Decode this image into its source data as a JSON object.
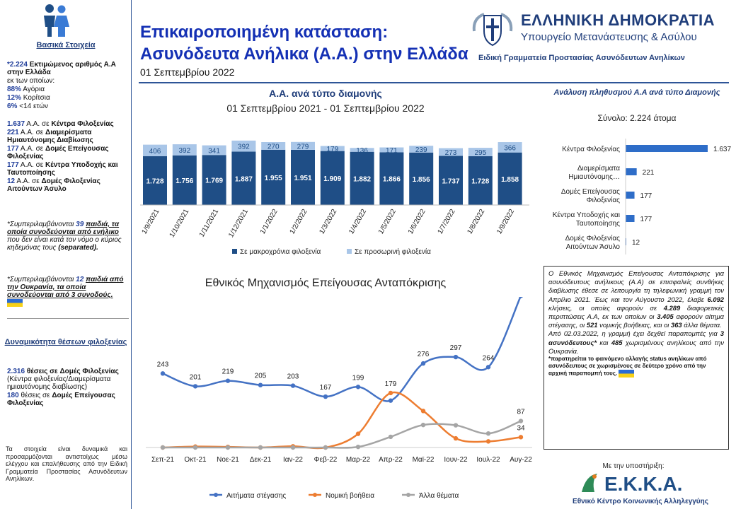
{
  "header": {
    "title_line1": "Επικαιροποιημένη κατάσταση:",
    "title_line2": "Ασυνόδευτα Ανήλικα (Α.Α.) στην Ελλάδα",
    "date": "01 Σεπτεμβρίου 2022",
    "gov_name": "ΕΛΛΗΝΙΚΗ ΔΗΜΟΚΡΑΤΙΑ",
    "gov_ministry": "Υπουργείο Μετανάστευσης & Ασύλου",
    "gov_secretariat": "Ειδική Γραμματεία Προστασίας Ασυνόδευτων Ανηλίκων"
  },
  "sidebar": {
    "basic_title": "Βασικά Στοιχεία",
    "estimate_value": "*2.224",
    "estimate_text": "Εκτιμώμενος αριθμός Α.Α στην Ελλάδα",
    "of_which": "εκ των οποίων:",
    "boys_pct": "88%",
    "boys_label": "Αγόρια",
    "girls_pct": "12%",
    "girls_label": "Κορίτσια",
    "under14_pct": "6%",
    "under14_label": "<14 ετών",
    "acc1_value": "1.637",
    "acc1_mid": "Α.Α. σε",
    "acc1_label": "Κέντρα Φιλοξενίας",
    "acc2_value": "221",
    "acc2_mid": "Α.Α. σε",
    "acc2_label": "Διαμερίσματα Ημιαυτόνομης Διαβίωσης",
    "acc3_value": "177",
    "acc3_mid": "Α.Α. σε",
    "acc3_label": "Δομές Επείγουσας Φιλοξενίας",
    "acc4_value": "177",
    "acc4_mid": "Α.Α. σε",
    "acc4_label": "Κέντρα Υποδοχής και Ταυτοποίησης",
    "acc5_value": "12",
    "acc5_mid": "Α.Α. σε",
    "acc5_label": "Δομές Φιλοξενίας Αιτούντων Άσυλο",
    "note1_a": "*Συμπεριλαμβάνονται",
    "note1_num": "39",
    "note1_b": "παιδιά, τα οποία συνοδεύονται από ενήλικο",
    "note1_c": "που δεν είναι κατά τον νόμο ο κύριος κηδεμόνας τους",
    "note1_d": "(separated).",
    "note2_a": "*Συμπεριλαμβάνονται",
    "note2_num": "12",
    "note2_b": "παιδιά από την Ουκρανία, τα οποία συνοδεύονται από 3 συνοδούς.",
    "capacity_title": "Δυναμικότητα θέσεων φιλοξενίας",
    "cap1_value": "2.316",
    "cap1_mid": "θέσεις σε",
    "cap1_label": "Δομές Φιλοξενίας",
    "cap1_note": "(Κέντρα φιλοξενίας/Διαμερίσματα ημιαυτόνομης διαβίωσης)",
    "cap2_value": "180",
    "cap2_mid": "θέσεις σε",
    "cap2_label": "Δομές Επείγουσας Φιλοξενίας",
    "footnote": "Τα στοιχεία είναι δυναμικά και προσαρμόζονται αντιστοίχως μέσω ελέγχου και επαλήθευσης από την Ειδική Γραμματεία Προστασίας Ασυνόδευτων Ανηλίκων."
  },
  "accommodation_chart": {
    "title": "Α.Α. ανά τύπο διαμονής",
    "subtitle": "01 Σεπτεμβρίου 2021 - 01 Σεπτεμβρίου 2022"
  },
  "emergency_chart": {
    "title": "Εθνικός Μηχανισμός Επείγουσας Ανταπόκρισης"
  },
  "population_chart": {
    "title": "Ανάλυση πληθυσμού Α.Α ανά τύπο Διαμονής",
    "total": "Σύνολο: 2.224 άτομα"
  },
  "chart_data": [
    {
      "type": "bar",
      "stacked": true,
      "title": "Α.Α. ανά τύπο διαμονής",
      "subtitle": "01 Σεπτεμβρίου 2021 - 01 Σεπτεμβρίου 2022",
      "categories": [
        "1/9/2021",
        "1/10/2021",
        "1/11/2021",
        "1/12/2021",
        "1/1/2022",
        "1/2/2022",
        "1/3/2022",
        "1/4/2022",
        "1/5/2022",
        "1/6/2022",
        "1/7/2022",
        "1/8/2022",
        "1/9/2022"
      ],
      "series": [
        {
          "name": "Σε μακροχρόνια φιλοξενία",
          "values": [
            1728,
            1756,
            1769,
            1887,
            1955,
            1951,
            1909,
            1882,
            1866,
            1856,
            1737,
            1728,
            1858
          ],
          "labels": [
            "1.728",
            "1.756",
            "1.769",
            "1.887",
            "1.955",
            "1.951",
            "1.909",
            "1.882",
            "1.866",
            "1.856",
            "1.737",
            "1.728",
            "1.858"
          ],
          "color": "#1f4e86"
        },
        {
          "name": "Σε προσωρινή φιλοξενία",
          "values": [
            406,
            392,
            341,
            392,
            270,
            279,
            179,
            136,
            171,
            239,
            273,
            295,
            366
          ],
          "labels": [
            "406",
            "392",
            "341",
            "392",
            "270",
            "279",
            "179",
            "136",
            "171",
            "239",
            "273",
            "295",
            "366"
          ],
          "color": "#a9c6e8"
        }
      ],
      "legend": "bottom"
    },
    {
      "type": "bar",
      "orientation": "horizontal",
      "title": "Ανάλυση πληθυσμού Α.Α ανά τύπο Διαμονής",
      "subtitle": "Σύνολο: 2.224 άτομα",
      "categories": [
        "Κέντρα Φιλοξενίας",
        "Διαμερίσματα Ημιαυτόνομης…",
        "Δομές Επείγουσας Φιλοξενίας",
        "Κέντρα Υποδοχής και Ταυτοποίησης",
        "Δομές Φιλοξενίας Αιτούντων Άσυλο"
      ],
      "values": [
        1637,
        221,
        177,
        177,
        12
      ],
      "labels": [
        "1.637",
        "221",
        "177",
        "177",
        "12"
      ],
      "color": "#2e6dc8"
    },
    {
      "type": "line",
      "title": "Εθνικός Μηχανισμός Επείγουσας Ανταπόκρισης",
      "categories": [
        "Σεπ-21",
        "Οκτ-21",
        "Νοε-21",
        "Δεκ-21",
        "Ιαν-22",
        "Φεβ-22",
        "Μαρ-22",
        "Απρ-22",
        "Μαϊ-22",
        "Ιουν-22",
        "Ιουλ-22",
        "Αυγ-22"
      ],
      "ylim": [
        0,
        520
      ],
      "series": [
        {
          "name": "Αιτήματα στέγασης",
          "values": [
            243,
            201,
            219,
            205,
            203,
            167,
            199,
            154,
            276,
            297,
            264,
            498
          ],
          "labels": [
            "243",
            "201",
            "219",
            "205",
            "203",
            "167",
            "199",
            "",
            "276",
            "297",
            "264",
            "498"
          ],
          "color": "#4472c4"
        },
        {
          "name": "Νομική βοήθεια",
          "values": [
            0,
            3,
            2,
            0,
            4,
            0,
            45,
            179,
            120,
            30,
            20,
            34
          ],
          "labels": [
            "",
            "",
            "",
            "",
            "",
            "",
            "",
            "179",
            "",
            "",
            "",
            "34"
          ],
          "color": "#ed7d31"
        },
        {
          "name": "Άλλα θέματα",
          "values": [
            0,
            0,
            0,
            0,
            0,
            0,
            2,
            35,
            74,
            73,
            46,
            87
          ],
          "labels": [
            "",
            "",
            "",
            "",
            "",
            "",
            "",
            "",
            "",
            "",
            "",
            "87"
          ],
          "color": "#a5a5a5"
        }
      ],
      "legend": "bottom"
    }
  ],
  "info_box": {
    "p1_a": "Ο Εθνικός Μηχανισμός Επείγουσας Ανταπόκρισης για ασυνόδευτους ανήλικους (Α.Α) σε επισφαλείς συνθήκες διαβίωσης έθεσε σε λειτουργία τη τηλεφωνική γραμμή τον Απρίλιο 2021. Έως και τον Αύγουστο 2022, έλαβε",
    "p1_calls": "6.092",
    "p1_b": "κλήσεις, οι οποίες αφορούν σε",
    "p1_cases": "4.289",
    "p1_c": "διαφορετικές περιπτώσεις Α.Α, εκ των οποίων οι",
    "p1_housing": "3.405",
    "p1_d": "αφορούν αίτημα στέγασης, οι",
    "p1_legal": "521",
    "p1_e": "νομικής βοήθειας, και οι",
    "p1_other": "363",
    "p1_f": "άλλα θέματα.",
    "p2_a": "Από 02.03.2022, η γραμμή έχει δεχθεί παραπομπές για",
    "p2_escorts": "3 ασυνόδευτους*",
    "p2_b": "και",
    "p2_separated": "485",
    "p2_c": "χωρισμένους ανηλίκους από την Ουκρανία.",
    "note": "*παρατηρείται το φαινόμενο αλλαγής status ανηλίκων από ασυνόδευτους σε χωρισμένους σε δεύτερο χρόνο από την αρχική παραπομπή τους."
  },
  "support": {
    "label": "Με την υποστήριξη:",
    "logo_text": "Ε.Κ.Κ.Α.",
    "org_name": "Εθνικό Κέντρο Κοινωνικής Αλληλεγγύης"
  }
}
